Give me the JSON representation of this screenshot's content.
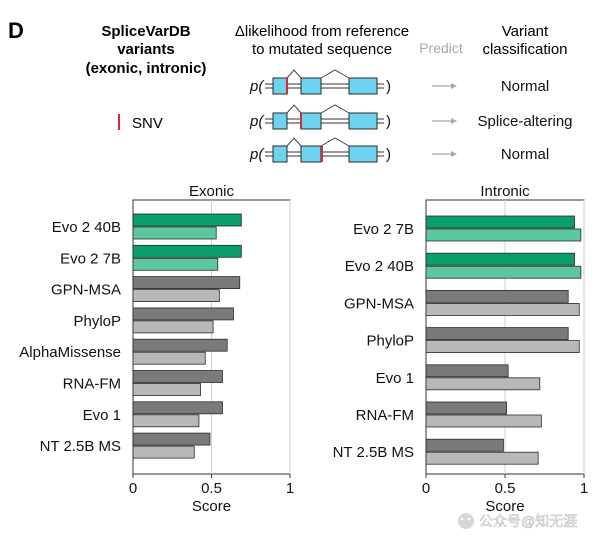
{
  "panel_label": "D",
  "header": {
    "dataset_line1": "SpliceVarDB",
    "dataset_line2": "variants",
    "dataset_line3": "(exonic, intronic)",
    "delta_line1": "Δlikelihood from reference",
    "delta_line2": "to mutated sequence",
    "predict": "Predict",
    "variant_line1": "Variant",
    "variant_line2": "classification"
  },
  "legend": {
    "snv": "SNV"
  },
  "schematic": {
    "p_label": "p(",
    "close_paren": ")",
    "rows": [
      {
        "classification": "Normal"
      },
      {
        "classification": "Splice-altering"
      },
      {
        "classification": "Normal"
      }
    ]
  },
  "colors": {
    "evo_dark": "#0a9e6a",
    "evo_light": "#5cc79d",
    "other_dark": "#7a7a7a",
    "other_light": "#b8b8b8",
    "exon_fill": "#6fd3ef",
    "snv": "#d42b3a",
    "arrow": "#a8a8a8",
    "grid": "#cfcfcf"
  },
  "watermark": "公众号@知无涯",
  "chart_data": [
    {
      "type": "bar",
      "orientation": "horizontal",
      "title": "Exonic",
      "xlabel": "Score",
      "xlim": [
        0,
        1
      ],
      "xticks": [
        "0",
        "0.5",
        "1"
      ],
      "grid": true,
      "categories": [
        "Evo 2 40B",
        "Evo 2 7B",
        "GPN-MSA",
        "PhyloP",
        "AlphaMissense",
        "RNA-FM",
        "Evo 1",
        "NT 2.5B MS"
      ],
      "series": [
        {
          "values": [
            0.69,
            0.69,
            0.68,
            0.64,
            0.6,
            0.57,
            0.57,
            0.49
          ]
        },
        {
          "values": [
            0.53,
            0.54,
            0.55,
            0.51,
            0.46,
            0.43,
            0.42,
            0.39
          ]
        }
      ]
    },
    {
      "type": "bar",
      "orientation": "horizontal",
      "title": "Intronic",
      "xlabel": "Score",
      "xlim": [
        0,
        1
      ],
      "xticks": [
        "0",
        "0.5",
        "1"
      ],
      "grid": true,
      "categories": [
        "Evo 2 7B",
        "Evo 2 40B",
        "GPN-MSA",
        "PhyloP",
        "Evo 1",
        "RNA-FM",
        "NT 2.5B MS"
      ],
      "series": [
        {
          "values": [
            0.94,
            0.94,
            0.9,
            0.9,
            0.52,
            0.51,
            0.49
          ]
        },
        {
          "values": [
            0.98,
            0.98,
            0.97,
            0.97,
            0.72,
            0.73,
            0.71
          ]
        }
      ]
    }
  ]
}
